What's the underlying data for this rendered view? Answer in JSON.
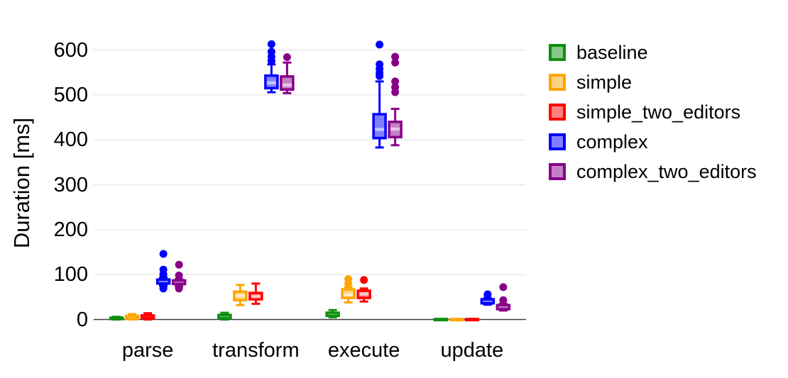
{
  "y_axis": {
    "label": "Duration [ms]",
    "unit": "ms",
    "ticks": [
      0,
      100,
      200,
      300,
      400,
      500,
      600
    ],
    "range": [
      0,
      620
    ]
  },
  "x_axis": {
    "categories": [
      "parse",
      "transform",
      "execute",
      "update"
    ]
  },
  "legend": {
    "position": "right",
    "items": [
      {
        "label": "baseline",
        "color": "#0f8f0f",
        "fill": "#87c787"
      },
      {
        "label": "simple",
        "color": "#ffa500",
        "fill": "#ffd27f"
      },
      {
        "label": "simple_two_editors",
        "color": "#ff0000",
        "fill": "#ff8080"
      },
      {
        "label": "complex",
        "color": "#0000ff",
        "fill": "#8080ff"
      },
      {
        "label": "complex_two_editors",
        "color": "#880088",
        "fill": "#c480c4"
      }
    ]
  },
  "style": {
    "gridline_color": "#e8e8e8",
    "axis_line_color": "#3c3c3c",
    "median_band_color": "rgba(255,255,255,0.55)"
  },
  "chart_data": {
    "type": "boxplot",
    "title": "",
    "xlabel": "",
    "ylabel": "Duration [ms]",
    "ylim": [
      0,
      620
    ],
    "grid": true,
    "legend_position": "right",
    "categories": [
      "parse",
      "transform",
      "execute",
      "update"
    ],
    "series": [
      {
        "name": "baseline",
        "color": "#0f8f0f",
        "fill": "#87c787",
        "values": [
          {
            "median": 2,
            "q1": 1,
            "q3": 4,
            "lo": 0,
            "hi": 6,
            "outliers": []
          },
          {
            "median": 6,
            "q1": 3,
            "q3": 10,
            "lo": 0,
            "hi": 15,
            "outliers": []
          },
          {
            "median": 11,
            "q1": 8,
            "q3": 15,
            "lo": 5,
            "hi": 21,
            "outliers": []
          },
          {
            "median": 0,
            "q1": 0,
            "q3": 1,
            "lo": 0,
            "hi": 1,
            "outliers": []
          }
        ]
      },
      {
        "name": "simple",
        "color": "#ffa500",
        "fill": "#ffd27f",
        "values": [
          {
            "median": 5,
            "q1": 2,
            "q3": 8,
            "lo": 0,
            "hi": 12,
            "outliers": []
          },
          {
            "median": 53,
            "q1": 43,
            "q3": 62,
            "lo": 32,
            "hi": 77,
            "outliers": []
          },
          {
            "median": 55,
            "q1": 48,
            "q3": 67,
            "lo": 38,
            "hi": 72,
            "outliers": [
              80,
              90
            ]
          },
          {
            "median": 0,
            "q1": 0,
            "q3": 1,
            "lo": 0,
            "hi": 1,
            "outliers": []
          }
        ]
      },
      {
        "name": "simple_two_editors",
        "color": "#ff0000",
        "fill": "#ff8080",
        "values": [
          {
            "median": 6,
            "q1": 3,
            "q3": 9,
            "lo": 0,
            "hi": 14,
            "outliers": []
          },
          {
            "median": 51,
            "q1": 45,
            "q3": 59,
            "lo": 35,
            "hi": 80,
            "outliers": []
          },
          {
            "median": 57,
            "q1": 48,
            "q3": 64,
            "lo": 40,
            "hi": 69,
            "outliers": [
              88
            ]
          },
          {
            "median": 0,
            "q1": 0,
            "q3": 1,
            "lo": 0,
            "hi": 1,
            "outliers": []
          }
        ]
      },
      {
        "name": "complex",
        "color": "#0000ff",
        "fill": "#8080ff",
        "values": [
          {
            "median": 85,
            "q1": 80,
            "q3": 89,
            "lo": 75,
            "hi": 94,
            "outliers": [
              69,
              101,
              111,
              146
            ]
          },
          {
            "median": 527,
            "q1": 515,
            "q3": 543,
            "lo": 506,
            "hi": 568,
            "outliers": [
              576,
              585,
              596,
              613
            ]
          },
          {
            "median": 423,
            "q1": 404,
            "q3": 457,
            "lo": 383,
            "hi": 530,
            "outliers": [
              542,
              549,
              558,
              568,
              612
            ]
          },
          {
            "median": 40,
            "q1": 36,
            "q3": 45,
            "lo": 33,
            "hi": 48,
            "outliers": [
              56
            ]
          }
        ]
      },
      {
        "name": "complex_two_editors",
        "color": "#880088",
        "fill": "#c480c4",
        "values": [
          {
            "median": 83,
            "q1": 79,
            "q3": 87,
            "lo": 74,
            "hi": 90,
            "outliers": [
              69,
              98,
              122
            ]
          },
          {
            "median": 522,
            "q1": 512,
            "q3": 541,
            "lo": 504,
            "hi": 572,
            "outliers": [
              584
            ]
          },
          {
            "median": 424,
            "q1": 406,
            "q3": 440,
            "lo": 388,
            "hi": 469,
            "outliers": [
              506,
              517,
              530,
              572,
              585
            ]
          },
          {
            "median": 28,
            "q1": 23,
            "q3": 32,
            "lo": 20,
            "hi": 35,
            "outliers": [
              43,
              72
            ]
          }
        ]
      }
    ]
  }
}
